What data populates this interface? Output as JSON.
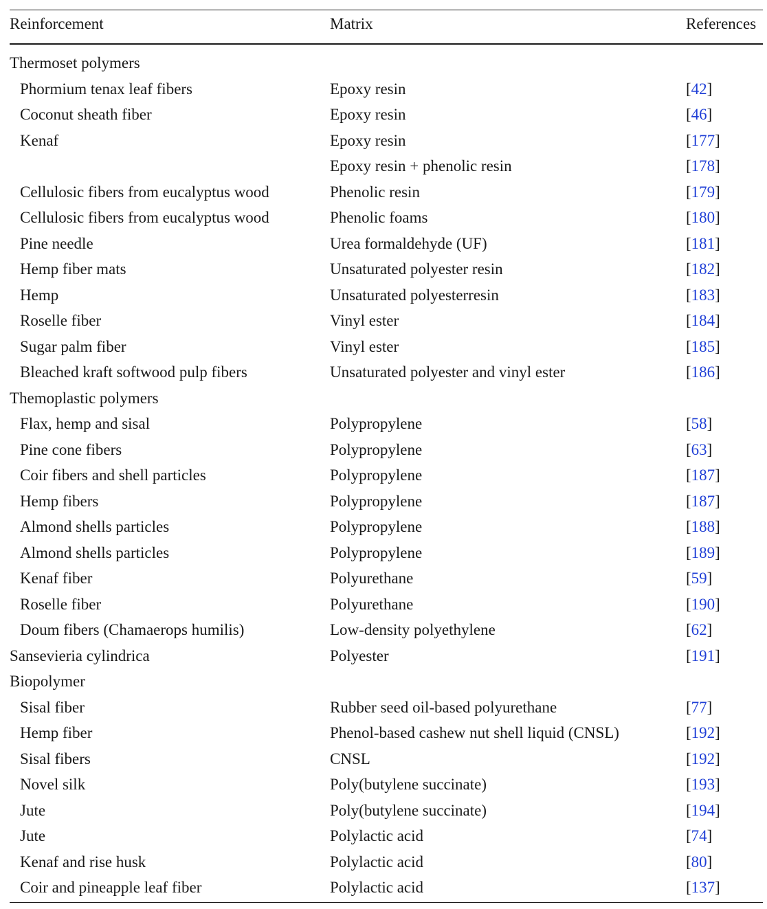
{
  "table": {
    "headers": {
      "reinforcement": "Reinforcement",
      "matrix": "Matrix",
      "references": "References"
    },
    "rows": [
      {
        "type": "group",
        "reinforcement": "Thermoset polymers",
        "matrix": "",
        "ref": ""
      },
      {
        "type": "item",
        "reinforcement": "Phormium tenax leaf fibers",
        "matrix": "Epoxy resin",
        "ref": "42"
      },
      {
        "type": "item",
        "reinforcement": "Coconut sheath fiber",
        "matrix": "Epoxy resin",
        "ref": "46"
      },
      {
        "type": "item",
        "reinforcement": "Kenaf",
        "matrix": "Epoxy resin",
        "ref": "177"
      },
      {
        "type": "item",
        "reinforcement": "",
        "matrix": "Epoxy resin + phenolic resin",
        "ref": "178"
      },
      {
        "type": "item",
        "reinforcement": "Cellulosic fibers from eucalyptus wood",
        "matrix": "Phenolic resin",
        "ref": "179"
      },
      {
        "type": "item",
        "reinforcement": "Cellulosic fibers from eucalyptus wood",
        "matrix": "Phenolic foams",
        "ref": "180"
      },
      {
        "type": "item",
        "reinforcement": "Pine needle",
        "matrix": "Urea formaldehyde (UF)",
        "ref": "181"
      },
      {
        "type": "item",
        "reinforcement": "Hemp fiber mats",
        "matrix": "Unsaturated polyester resin",
        "ref": "182"
      },
      {
        "type": "item",
        "reinforcement": "Hemp",
        "matrix": "Unsaturated polyesterresin",
        "ref": "183"
      },
      {
        "type": "item",
        "reinforcement": "Roselle fiber",
        "matrix": "Vinyl ester",
        "ref": "184"
      },
      {
        "type": "item",
        "reinforcement": "Sugar palm fiber",
        "matrix": "Vinyl ester",
        "ref": "185"
      },
      {
        "type": "item",
        "reinforcement": "Bleached kraft softwood pulp fibers",
        "matrix": "Unsaturated polyester and vinyl ester",
        "ref": "186"
      },
      {
        "type": "group",
        "reinforcement": "Themoplastic polymers",
        "matrix": "",
        "ref": ""
      },
      {
        "type": "item",
        "reinforcement": "Flax, hemp and sisal",
        "matrix": "Polypropylene",
        "ref": "58"
      },
      {
        "type": "item",
        "reinforcement": "Pine cone fibers",
        "matrix": "Polypropylene",
        "ref": "63"
      },
      {
        "type": "item",
        "reinforcement": "Coir fibers and shell particles",
        "matrix": "Polypropylene",
        "ref": "187"
      },
      {
        "type": "item",
        "reinforcement": "Hemp fibers",
        "matrix": "Polypropylene",
        "ref": "187"
      },
      {
        "type": "item",
        "reinforcement": "Almond shells particles",
        "matrix": "Polypropylene",
        "ref": "188"
      },
      {
        "type": "item",
        "reinforcement": "Almond shells particles",
        "matrix": "Polypropylene",
        "ref": "189"
      },
      {
        "type": "item",
        "reinforcement": "Kenaf fiber",
        "matrix": "Polyurethane",
        "ref": "59"
      },
      {
        "type": "item",
        "reinforcement": "Roselle fiber",
        "matrix": "Polyurethane",
        "ref": "190"
      },
      {
        "type": "item",
        "reinforcement": "Doum fibers (Chamaerops humilis)",
        "matrix": "Low-density polyethylene",
        "ref": "62"
      },
      {
        "type": "group",
        "reinforcement": "Sansevieria cylindrica",
        "matrix": "Polyester",
        "ref": "191"
      },
      {
        "type": "group",
        "reinforcement": "Biopolymer",
        "matrix": "",
        "ref": ""
      },
      {
        "type": "item",
        "reinforcement": "Sisal fiber",
        "matrix": "Rubber seed oil-based polyurethane",
        "ref": "77"
      },
      {
        "type": "item",
        "reinforcement": "Hemp fiber",
        "matrix": "Phenol-based cashew nut shell liquid (CNSL)",
        "ref": "192"
      },
      {
        "type": "item",
        "reinforcement": "Sisal fibers",
        "matrix": "CNSL",
        "ref": "192"
      },
      {
        "type": "item",
        "reinforcement": "Novel silk",
        "matrix": "Poly(butylene succinate)",
        "ref": "193"
      },
      {
        "type": "item",
        "reinforcement": "Jute",
        "matrix": "Poly(butylene succinate)",
        "ref": "194"
      },
      {
        "type": "item",
        "reinforcement": "Jute",
        "matrix": "Polylactic acid",
        "ref": "74"
      },
      {
        "type": "item",
        "reinforcement": "Kenaf and rise husk",
        "matrix": "Polylactic acid",
        "ref": "80"
      },
      {
        "type": "item",
        "reinforcement": "Coir and pineapple leaf fiber",
        "matrix": "Polylactic acid",
        "ref": "137"
      }
    ]
  },
  "colors": {
    "text": "#1a1a1a",
    "link": "#1f3fd6"
  }
}
